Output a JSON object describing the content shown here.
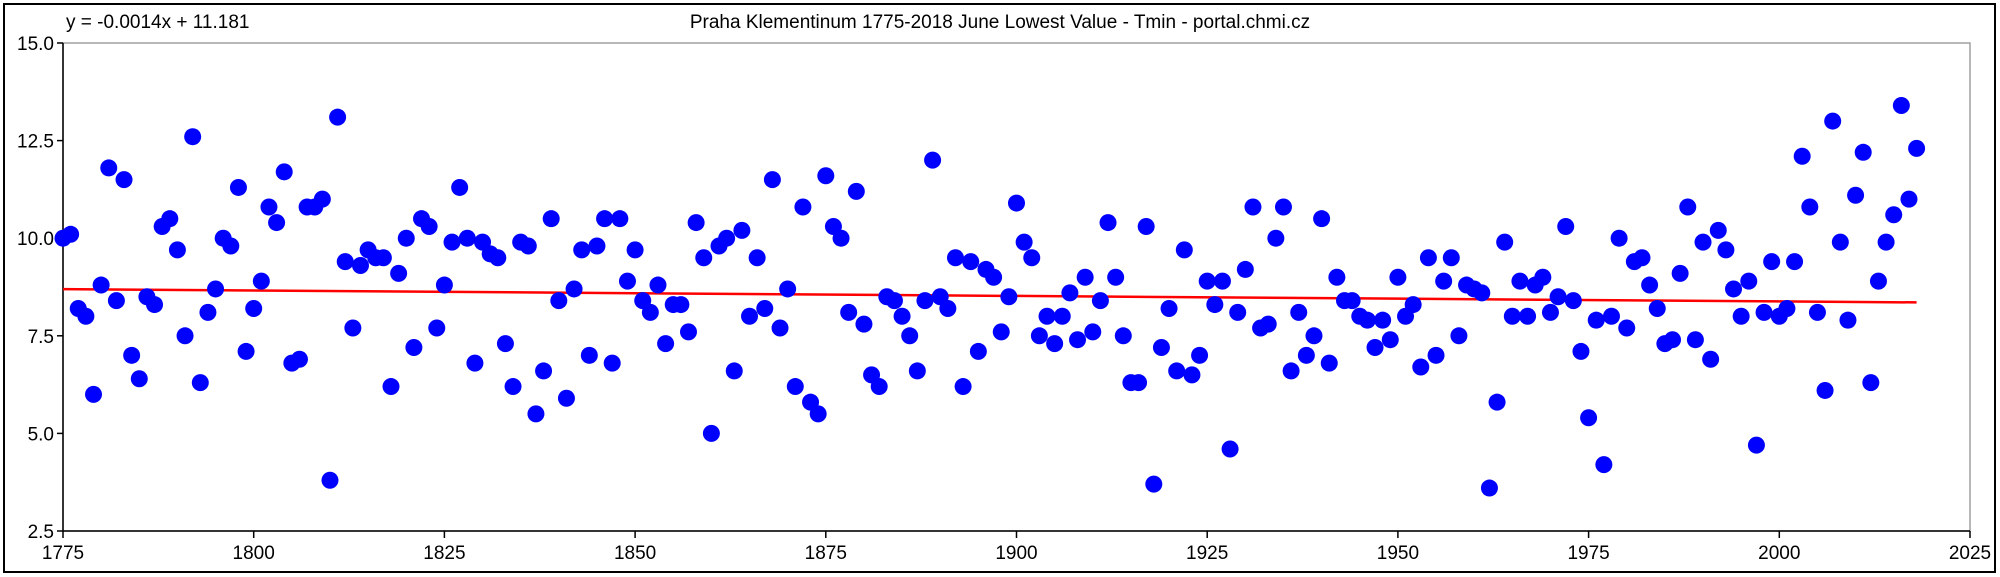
{
  "chart_data": {
    "type": "scatter",
    "title": "Praha Klementinum 1775-2018 June Lowest Value - Tmin - portal.chmi.cz",
    "trendline_label": "y = -0.0014x + 11.181",
    "trendline": {
      "slope": -0.0014,
      "intercept": 11.181,
      "x_range": [
        1775,
        2018
      ],
      "color": "#ff0000"
    },
    "marker_color": "#0000ff",
    "xlim": [
      1775,
      2025
    ],
    "ylim": [
      2.5,
      15.0
    ],
    "x_ticks": [
      "1775",
      "1800",
      "1825",
      "1850",
      "1875",
      "1900",
      "1925",
      "1950",
      "1975",
      "2000",
      "2025"
    ],
    "y_ticks": [
      "2.5",
      "5.0",
      "7.5",
      "10.0",
      "12.5",
      "15.0"
    ],
    "xlabel": "",
    "ylabel": "",
    "grid": false,
    "x_start": 1775,
    "values": [
      10.0,
      10.1,
      8.2,
      8.0,
      6.0,
      8.8,
      11.8,
      8.4,
      11.5,
      7.0,
      6.4,
      8.5,
      8.3,
      10.3,
      10.5,
      9.7,
      7.5,
      12.6,
      6.3,
      8.1,
      8.7,
      10.0,
      9.8,
      11.3,
      7.1,
      8.2,
      8.9,
      10.8,
      10.4,
      11.7,
      6.8,
      6.9,
      10.8,
      10.8,
      11.0,
      3.8,
      13.1,
      9.4,
      7.7,
      9.3,
      9.7,
      9.5,
      9.5,
      6.2,
      9.1,
      10.0,
      7.2,
      10.5,
      10.3,
      7.7,
      8.8,
      9.9,
      11.3,
      10.0,
      6.8,
      9.9,
      9.6,
      9.5,
      7.3,
      6.2,
      9.9,
      9.8,
      5.5,
      6.6,
      10.5,
      8.4,
      5.9,
      8.7,
      9.7,
      7.0,
      9.8,
      10.5,
      6.8,
      10.5,
      8.9,
      9.7,
      8.4,
      8.1,
      8.8,
      7.3,
      8.3,
      8.3,
      7.6,
      10.4,
      9.5,
      5.0,
      9.8,
      10.0,
      6.6,
      10.2,
      8.0,
      9.5,
      8.2,
      11.5,
      7.7,
      8.7,
      6.2,
      10.8,
      5.8,
      5.5,
      11.6,
      10.3,
      10.0,
      8.1,
      11.2,
      7.8,
      6.5,
      6.2,
      8.5,
      8.4,
      8.0,
      7.5,
      6.6,
      8.4,
      12.0,
      8.5,
      8.2,
      9.5,
      6.2,
      9.4,
      7.1,
      9.2,
      9.0,
      7.6,
      8.5,
      10.9,
      9.9,
      9.5,
      7.5,
      8.0,
      7.3,
      8.0,
      8.6,
      7.4,
      9.0,
      7.6,
      8.4,
      10.4,
      9.0,
      7.5,
      6.3,
      6.3,
      10.3,
      3.7,
      7.2,
      8.2,
      6.6,
      9.7,
      6.5,
      7.0,
      8.9,
      8.3,
      8.9,
      4.6,
      8.1,
      9.2,
      10.8,
      7.7,
      7.8,
      10.0,
      10.8,
      6.6,
      8.1,
      7.0,
      7.5,
      10.5,
      6.8,
      9.0,
      8.4,
      8.4,
      8.0,
      7.9,
      7.2,
      7.9,
      7.4,
      9.0,
      8.0,
      8.3,
      6.7,
      9.5,
      7.0,
      8.9,
      9.5,
      7.5,
      8.8,
      8.7,
      8.6,
      3.6,
      5.8,
      9.9,
      8.0,
      8.9,
      8.0,
      8.8,
      9.0,
      8.1,
      8.5,
      10.3,
      8.4,
      7.1,
      5.4,
      7.9,
      4.2,
      8.0,
      10.0,
      7.7,
      9.4,
      9.5,
      8.8,
      8.2,
      7.3,
      7.4,
      9.1,
      10.8,
      7.4,
      9.9,
      6.9,
      10.2,
      9.7,
      8.7,
      8.0,
      8.9,
      4.7,
      8.1,
      9.4,
      8.0,
      8.2,
      9.4,
      12.1,
      10.8,
      8.1,
      6.1,
      13.0,
      9.9,
      7.9,
      11.1,
      12.2,
      6.3,
      8.9,
      9.9,
      10.6,
      13.4,
      11.0,
      12.3
    ]
  }
}
